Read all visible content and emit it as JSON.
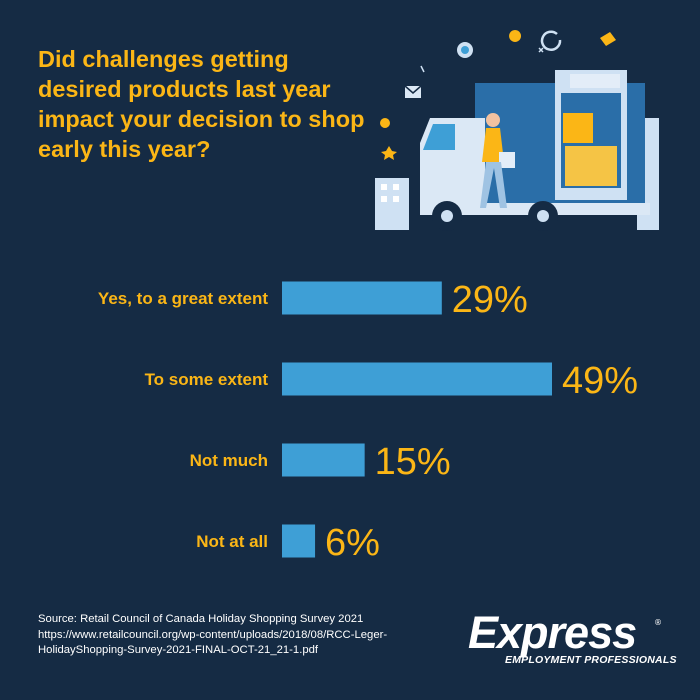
{
  "colors": {
    "background": "#152b44",
    "accent": "#fbb616",
    "bar": "#3e9fd6",
    "text": "#ffffff"
  },
  "chart_data": {
    "type": "bar",
    "orientation": "horizontal",
    "title": "Did challenges getting desired products last year impact your decision to shop early this year?",
    "categories": [
      "Yes, to a great extent",
      "To some extent",
      "Not much",
      "Not at all"
    ],
    "values": [
      29,
      49,
      15,
      6
    ],
    "value_labels": [
      "29%",
      "49%",
      "15%",
      "6%"
    ],
    "unit": "%",
    "xlim": [
      0,
      49
    ],
    "grid": false,
    "legend": "none"
  },
  "source": {
    "lines": [
      "Source: Retail Council of Canada Holiday Shopping Survey 2021",
      "https://www.retailcouncil.org/wp-content/uploads/2018/08/RCC-Leger-",
      "HolidayShopping-Survey-2021-FINAL-OCT-21_21-1.pdf"
    ]
  },
  "logo": {
    "word": "Express",
    "tagline": "EMPLOYMENT PROFESSIONALS",
    "reg": "®"
  },
  "illustration": {
    "icon": "delivery-truck-icon"
  }
}
